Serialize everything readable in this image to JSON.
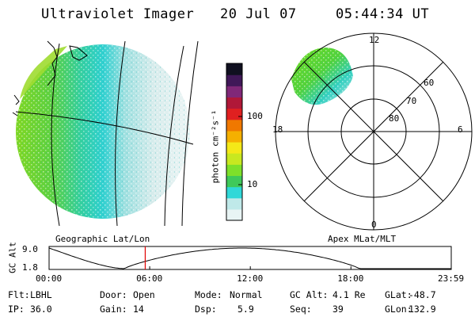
{
  "header": {
    "title": "Ultraviolet Imager",
    "date": "20 Jul 07",
    "time": "05:44:34 UT"
  },
  "panels": {
    "geo_label": "Geographic Lat/Lon",
    "polar_label": "Apex MLat/MLT"
  },
  "colorbar": {
    "unit_label": "photon cm⁻²s⁻¹",
    "ticks": [
      {
        "value": 100,
        "label": "100"
      },
      {
        "value": 10,
        "label": "10"
      }
    ],
    "range": [
      3,
      600
    ],
    "scale": "log",
    "colors": [
      "#e8f4f4",
      "#bfe9e9",
      "#30d8d8",
      "#3fc95a",
      "#7ee02a",
      "#c8e820",
      "#f4e818",
      "#f5b000",
      "#f07800",
      "#e02020",
      "#b01838",
      "#802878",
      "#401858",
      "#101020"
    ]
  },
  "polar_plot": {
    "mlt_labels": {
      "top": "12",
      "right": "6",
      "bottom": "0",
      "left": "18"
    },
    "lat_labels": [
      "60",
      "70",
      "80"
    ]
  },
  "altitude_plot": {
    "ylabel": "GC Alt",
    "y_ticks": [
      "9.0",
      "1.8"
    ],
    "x_ticks": [
      "00:00",
      "06:00",
      "12:00",
      "18:00",
      "23:59"
    ],
    "current_time_marker": "05:44",
    "marker_color": "#e00000"
  },
  "info": {
    "row1": [
      {
        "label": "Flt:",
        "value": "LBHL"
      },
      {
        "label": "Door:",
        "value": "Open"
      },
      {
        "label": "Mode:",
        "value": "Normal"
      },
      {
        "label": "GC Alt:",
        "value": "4.1 Re"
      },
      {
        "label": "GLat:",
        "value": "-48.7"
      }
    ],
    "row2": [
      {
        "label": "IP:",
        "value": "36.0"
      },
      {
        "label": "Gain:",
        "value": "14"
      },
      {
        "label": "Dsp:",
        "value": "5.9"
      },
      {
        "label": "Seq:",
        "value": "39"
      },
      {
        "label": "GLon:",
        "value": "132.9"
      }
    ]
  }
}
